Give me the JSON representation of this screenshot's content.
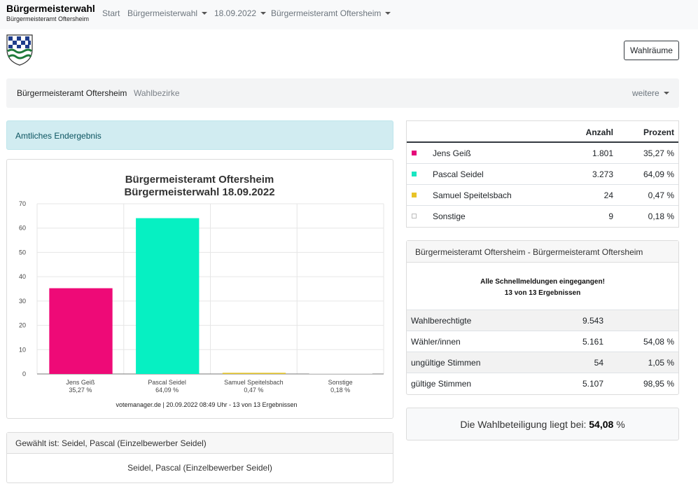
{
  "brand": {
    "title": "Bürgermeisterwahl",
    "subtitle": "Bürgermeisteramt Oftersheim"
  },
  "nav": {
    "start": "Start",
    "election": "Bürgermeisterwahl",
    "date": "18.09.2022",
    "area": "Bürgermeisteramt Oftersheim"
  },
  "wahlraeume_label": "Wahlräume",
  "subnav": {
    "current": "Bürgermeisteramt Oftersheim",
    "districts": "Wahlbezirke",
    "more": "weitere"
  },
  "alert": "Amtliches Endergebnis",
  "chart_data": {
    "type": "bar",
    "title": "Bürgermeisteramt Oftersheim",
    "subtitle": "Bürgermeisterwahl 18.09.2022",
    "categories": [
      "Jens Geiß",
      "Pascal Seidel",
      "Samuel Speitelsbach",
      "Sonstige"
    ],
    "category_labels": [
      "35,27 %",
      "64,09 %",
      "0,47 %",
      "0,18 %"
    ],
    "values": [
      35.27,
      64.09,
      0.47,
      0.18
    ],
    "colors": [
      "#ee0a77",
      "#06f0c2",
      "#e2c32a",
      "#e8e8e8"
    ],
    "ylim": [
      0,
      70
    ],
    "yticks": [
      "0",
      "10",
      "20",
      "30",
      "40",
      "50",
      "60",
      "70"
    ],
    "grid": true,
    "footer": "votemanager.de | 20.09.2022 08:49 Uhr - 13 von 13 Ergebnissen"
  },
  "winner": {
    "header": "Gewählt ist: Seidel, Pascal (Einzelbewerber Seidel)",
    "name": "Seidel, Pascal (Einzelbewerber Seidel)"
  },
  "table": {
    "col_count": "Anzahl",
    "col_percent": "Prozent",
    "rows": [
      {
        "name": "Jens Geiß",
        "count": "1.801",
        "percent": "35,27 %",
        "color": "#e5097a"
      },
      {
        "name": "Pascal Seidel",
        "count": "3.273",
        "percent": "64,09 %",
        "color": "#19e6c1"
      },
      {
        "name": "Samuel Speitelsbach",
        "count": "24",
        "percent": "0,47 %",
        "color": "#e8c328"
      },
      {
        "name": "Sonstige",
        "count": "9",
        "percent": "0,18 %",
        "color": "#ffffff"
      }
    ]
  },
  "stats": {
    "header": "Bürgermeisteramt Oftersheim - Bürgermeisteramt Oftersheim",
    "msg1": "Alle Schnellmeldungen eingegangen!",
    "msg2": "13 von 13 Ergebnissen",
    "rows": [
      {
        "label": "Wahlberechtigte",
        "value": "9.543",
        "percent": ""
      },
      {
        "label": "Wähler/innen",
        "value": "5.161",
        "percent": "54,08 %"
      },
      {
        "label": "ungültige Stimmen",
        "value": "54",
        "percent": "1,05 %"
      },
      {
        "label": "gültige Stimmen",
        "value": "5.107",
        "percent": "98,95 %"
      }
    ]
  },
  "turnout": {
    "text": "Die Wahlbeteiligung liegt bei:",
    "value": "54,08",
    "unit": "%"
  },
  "icons": {
    "crest": "coat-of-arms-icon",
    "dropdown": "caret-down-icon"
  }
}
